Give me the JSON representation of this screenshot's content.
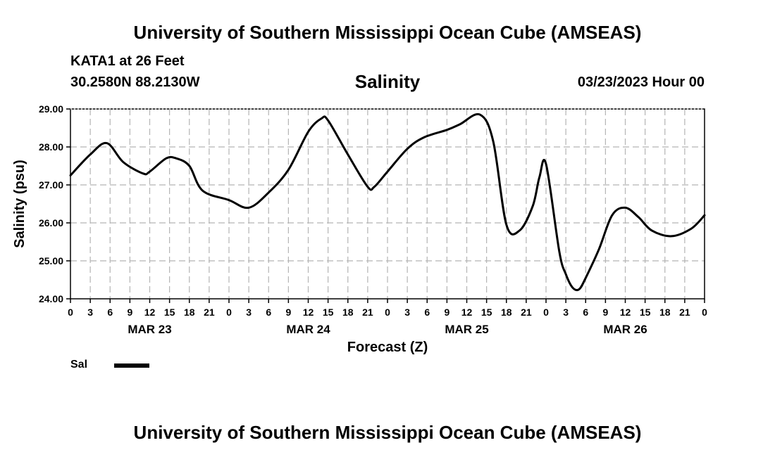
{
  "header": {
    "title": "University of Southern Mississippi Ocean Cube (AMSEAS)",
    "station": "KATA1 at 26 Feet",
    "coordinates": "30.2580N  88.2130W",
    "run_time": "03/23/2023 Hour 00"
  },
  "footer": {
    "title": "University of Southern Mississippi Ocean Cube (AMSEAS)"
  },
  "chart_data": {
    "type": "line",
    "title": "Salinity",
    "xlabel": "Forecast (Z)",
    "ylabel": "Salinity (psu)",
    "ylim": [
      24.0,
      29.0
    ],
    "yticks": [
      "24.00",
      "25.00",
      "26.00",
      "27.00",
      "28.00",
      "29.00"
    ],
    "xlim": [
      0,
      96
    ],
    "xtick_labels": [
      "0",
      "3",
      "6",
      "9",
      "12",
      "15",
      "18",
      "21",
      "0",
      "3",
      "6",
      "9",
      "12",
      "15",
      "18",
      "21",
      "0",
      "3",
      "6",
      "9",
      "12",
      "15",
      "18",
      "21",
      "0",
      "3",
      "6",
      "9",
      "12",
      "15",
      "18",
      "21",
      "0"
    ],
    "day_labels": [
      {
        "label": "MAR 23",
        "hour": 12
      },
      {
        "label": "MAR 24",
        "hour": 36
      },
      {
        "label": "MAR 25",
        "hour": 60
      },
      {
        "label": "MAR 26",
        "hour": 84
      }
    ],
    "grid": true,
    "legend": [
      {
        "name": "Sal",
        "color": "#000000"
      }
    ],
    "series": [
      {
        "name": "Sal",
        "x": [
          0,
          3,
          5.5,
          8,
          11,
          12,
          14.5,
          16,
          18,
          20,
          24,
          27,
          30,
          33,
          36,
          38,
          39,
          42,
          45,
          46,
          48,
          51,
          53.5,
          57,
          59,
          62,
          64,
          66,
          68,
          70,
          71,
          72,
          74,
          75,
          76,
          77,
          78,
          80,
          82,
          84,
          86,
          88,
          91,
          94,
          96
        ],
        "values": [
          27.25,
          27.8,
          28.1,
          27.6,
          27.3,
          27.35,
          27.7,
          27.7,
          27.5,
          26.85,
          26.6,
          26.4,
          26.8,
          27.4,
          28.4,
          28.75,
          28.7,
          27.8,
          26.95,
          26.95,
          27.35,
          27.95,
          28.25,
          28.45,
          28.6,
          28.85,
          28.15,
          25.95,
          25.8,
          26.45,
          27.2,
          27.55,
          25.25,
          24.65,
          24.3,
          24.25,
          24.55,
          25.3,
          26.2,
          26.4,
          26.15,
          25.8,
          25.65,
          25.85,
          26.2
        ]
      }
    ]
  }
}
